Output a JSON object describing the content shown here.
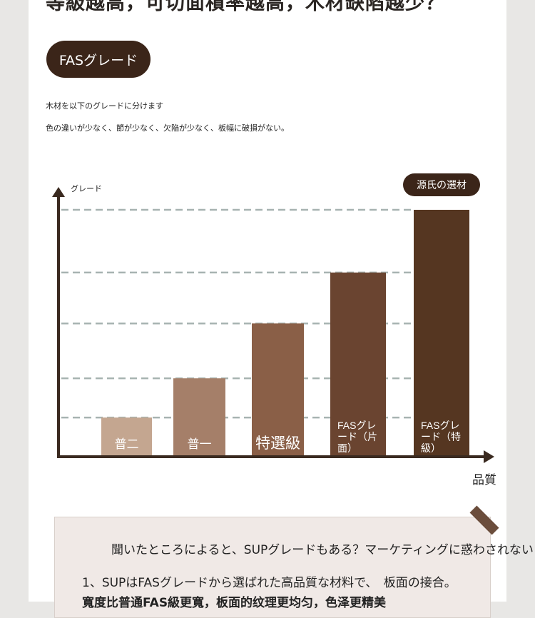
{
  "header": {
    "top_title": "等級越高，可切面積率越高，木材缺陷越少？"
  },
  "section": {
    "pill_label": "FASグレード",
    "desc1": "木材を以下のグレードに分けます",
    "desc2": "色の違いが少なく、節が少なく、欠陥が少なく、板幅に破損がない。"
  },
  "chart_data": {
    "type": "bar",
    "title": "",
    "ylabel": "グレード",
    "xlabel": "品質",
    "categories": [
      "普二",
      "普一",
      "特選級",
      "FASグレード（片面）",
      "FASグレード（特級）"
    ],
    "values": [
      1,
      2,
      3.4,
      4.7,
      6.3
    ],
    "ylim": [
      0,
      6.6
    ],
    "grid": true,
    "gridlines": [
      1,
      2,
      3.4,
      4.7,
      6.3
    ],
    "colors": [
      "#c4a690",
      "#a57f69",
      "#8a5f47",
      "#6a4430",
      "#553621"
    ],
    "annotation": "源氏の選材"
  },
  "quote": {
    "question": "聞いたところによると、SUPグレードもある？マーケティングに惑わされない！",
    "line1": "1、SUPはFASグレードから選ばれた高品質な材料で、　板面の接合。",
    "line2": "寬度比普通FAS級更寬，板面的纹理更均匀，色泽更精美"
  }
}
